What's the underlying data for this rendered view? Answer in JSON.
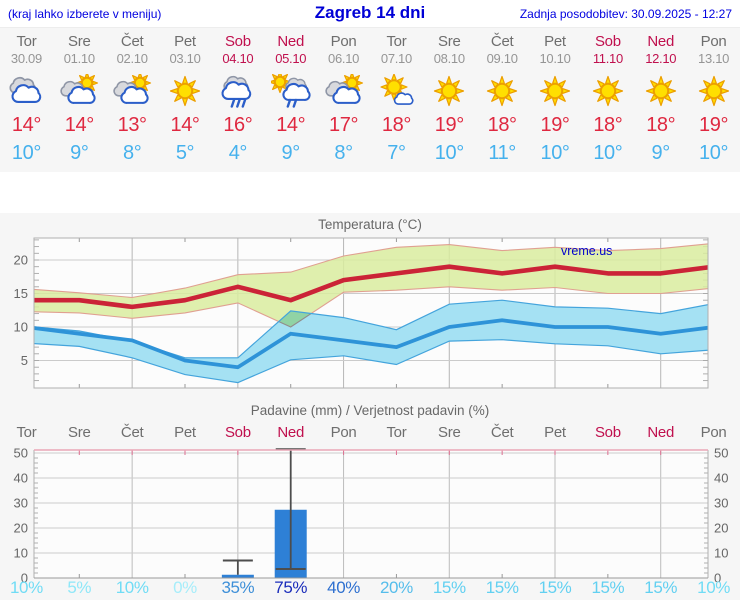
{
  "header": {
    "left": "(kraj lahko izberete v meniju)",
    "title": "Zagreb 14 dni",
    "right": "Zadnja posodobitev: 30.09.2025 - 12:27"
  },
  "days": [
    {
      "name": "Tor",
      "date": "30.09",
      "weekend": false,
      "icon": "cloudy",
      "tmax": "14°",
      "tmin": "10°",
      "prob": "10%",
      "prob_color": "#70dcf5"
    },
    {
      "name": "Sre",
      "date": "01.10",
      "weekend": false,
      "icon": "sun-cloud",
      "tmax": "14°",
      "tmin": "9°",
      "prob": "5%",
      "prob_color": "#8fe7f8"
    },
    {
      "name": "Čet",
      "date": "02.10",
      "weekend": false,
      "icon": "sun-cloud",
      "tmax": "13°",
      "tmin": "8°",
      "prob": "10%",
      "prob_color": "#70dcf5"
    },
    {
      "name": "Pet",
      "date": "03.10",
      "weekend": false,
      "icon": "sunny",
      "tmax": "14°",
      "tmin": "5°",
      "prob": "0%",
      "prob_color": "#a6edfa"
    },
    {
      "name": "Sob",
      "date": "04.10",
      "weekend": true,
      "icon": "rain",
      "tmax": "16°",
      "tmin": "4°",
      "prob": "35%",
      "prob_color": "#3d8fd8"
    },
    {
      "name": "Ned",
      "date": "05.10",
      "weekend": true,
      "icon": "sun-rain",
      "tmax": "14°",
      "tmin": "9°",
      "prob": "75%",
      "prob_color": "#1b2dbb"
    },
    {
      "name": "Pon",
      "date": "06.10",
      "weekend": false,
      "icon": "sun-cloud",
      "tmax": "17°",
      "tmin": "8°",
      "prob": "40%",
      "prob_color": "#2e70d0"
    },
    {
      "name": "Tor",
      "date": "07.10",
      "weekend": false,
      "icon": "sun-small-cloud",
      "tmax": "18°",
      "tmin": "7°",
      "prob": "20%",
      "prob_color": "#55bdeb"
    },
    {
      "name": "Sre",
      "date": "08.10",
      "weekend": false,
      "icon": "sunny",
      "tmax": "19°",
      "tmin": "10°",
      "prob": "15%",
      "prob_color": "#62d0f1"
    },
    {
      "name": "Čet",
      "date": "09.10",
      "weekend": false,
      "icon": "sunny",
      "tmax": "18°",
      "tmin": "11°",
      "prob": "15%",
      "prob_color": "#62d0f1"
    },
    {
      "name": "Pet",
      "date": "10.10",
      "weekend": false,
      "icon": "sunny",
      "tmax": "19°",
      "tmin": "10°",
      "prob": "15%",
      "prob_color": "#62d0f1"
    },
    {
      "name": "Sob",
      "date": "11.10",
      "weekend": true,
      "icon": "sunny",
      "tmax": "18°",
      "tmin": "10°",
      "prob": "15%",
      "prob_color": "#62d0f1"
    },
    {
      "name": "Ned",
      "date": "12.10",
      "weekend": true,
      "icon": "sunny",
      "tmax": "18°",
      "tmin": "9°",
      "prob": "15%",
      "prob_color": "#62d0f1"
    },
    {
      "name": "Pon",
      "date": "13.10",
      "weekend": false,
      "icon": "sunny",
      "tmax": "19°",
      "tmin": "10°",
      "prob": "10%",
      "prob_color": "#70dcf5"
    }
  ],
  "chart_data": [
    {
      "type": "line",
      "title": "Temperatura (°C)",
      "watermark": "vreme.us",
      "categories": [
        "30.09",
        "01.10",
        "02.10",
        "03.10",
        "04.10",
        "05.10",
        "06.10",
        "07.10",
        "08.10",
        "09.10",
        "10.10",
        "11.10",
        "12.10",
        "13.10"
      ],
      "ylim": [
        0.9,
        23.3
      ],
      "yticks": [
        5,
        10,
        15,
        20
      ],
      "grid": true,
      "series": [
        {
          "name": "max temperature",
          "color": "#cb2337",
          "band_color": "#d9ec9f",
          "values": [
            14,
            14,
            13,
            14,
            16,
            14,
            17,
            18,
            19,
            18,
            19,
            18,
            18,
            19
          ],
          "band_hi": [
            15.7,
            15.1,
            14.4,
            15.8,
            17.8,
            18.2,
            20.6,
            21.9,
            22.3,
            21.4,
            21.9,
            21.4,
            21.7,
            22.5
          ],
          "band_lo": [
            12.3,
            12.1,
            11.3,
            12.1,
            13.6,
            10.0,
            15.2,
            15.5,
            16.0,
            15.5,
            15.9,
            15.0,
            15.0,
            15.8
          ]
        },
        {
          "name": "min temperature",
          "color": "#2e93d8",
          "band_color": "#a5e1f3",
          "values": [
            10,
            9,
            8,
            5,
            4,
            9,
            8,
            7,
            10,
            11,
            10,
            10,
            9,
            10
          ],
          "band_hi": [
            10.1,
            9.4,
            7.9,
            5.4,
            5.4,
            12.4,
            11.4,
            9.6,
            13.4,
            14.0,
            13.0,
            12.8,
            12.0,
            13.5
          ],
          "band_lo": [
            7.6,
            7.1,
            5.4,
            2.9,
            1.7,
            5.1,
            5.7,
            4.4,
            7.9,
            8.1,
            7.5,
            7.2,
            6.0,
            6.6
          ]
        }
      ]
    },
    {
      "type": "bar",
      "title": "Padavine (mm) / Verjetnost padavin (%)",
      "categories": [
        "Tor",
        "Sre",
        "Čet",
        "Pet",
        "Sob",
        "Ned",
        "Pon",
        "Tor",
        "Sre",
        "Čet",
        "Pet",
        "Sob",
        "Ned",
        "Pon"
      ],
      "ylim": [
        0,
        52
      ],
      "yticks": [
        0,
        10,
        20,
        30,
        40,
        50
      ],
      "grid": true,
      "bar_color": "#2e80d6",
      "values": [
        0,
        0,
        0,
        0,
        1.3,
        27.3,
        0,
        0,
        0,
        0,
        0,
        0,
        0,
        0
      ],
      "whisker_lo": [
        null,
        null,
        null,
        null,
        null,
        3.6,
        null,
        null,
        null,
        null,
        null,
        null,
        null,
        null
      ],
      "whisker_hi": [
        null,
        null,
        null,
        null,
        7,
        51.5,
        null,
        null,
        null,
        null,
        null,
        null,
        null,
        null
      ],
      "probabilities": [
        10,
        5,
        10,
        0,
        35,
        75,
        40,
        20,
        15,
        15,
        15,
        15,
        15,
        10
      ]
    }
  ],
  "colors": {
    "header_blue": "#0000e0",
    "weekend": "#c0104e",
    "day_gray": "#6e6e6e",
    "date_gray": "#959595",
    "tmax_red": "#df2840",
    "tmin_blue": "#45b1ed",
    "bar_blue": "#2e80d6",
    "whisker_gray": "#4d4d4d",
    "precip_top_border_pink": "#eaa6b6",
    "watermark_blue": "#0000cc"
  }
}
